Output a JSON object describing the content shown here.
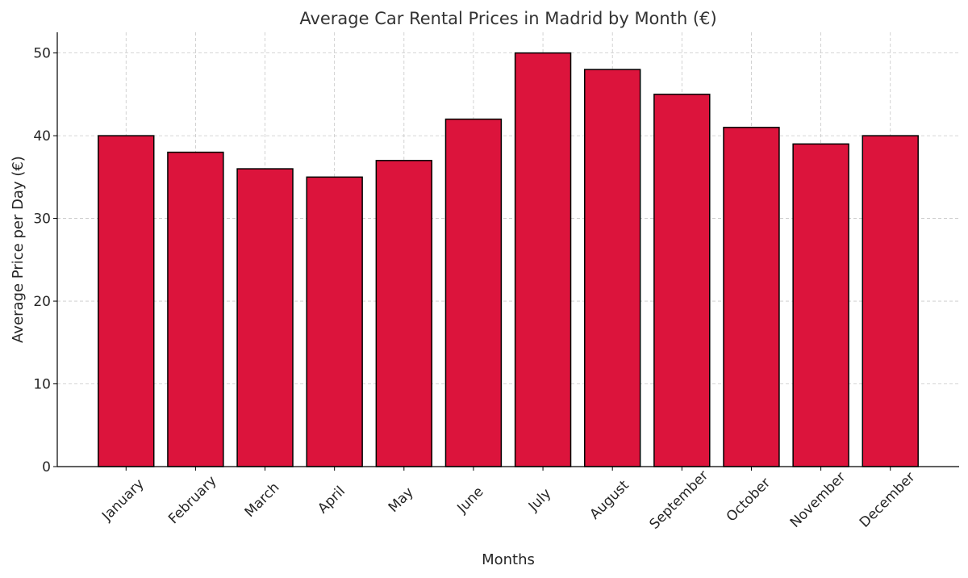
{
  "chart_data": {
    "type": "bar",
    "title": "Average Car Rental Prices in Madrid by Month (€)",
    "xlabel": "Months",
    "ylabel": "Average Price per Day (€)",
    "categories": [
      "January",
      "February",
      "March",
      "April",
      "May",
      "June",
      "July",
      "August",
      "September",
      "October",
      "November",
      "December"
    ],
    "values": [
      40,
      38,
      36,
      35,
      37,
      42,
      50,
      48,
      45,
      41,
      39,
      40
    ],
    "ylim": [
      0,
      52.5
    ],
    "yticks": [
      0,
      10,
      20,
      30,
      40,
      50
    ],
    "grid": true,
    "bar_color": "#DC143C",
    "edge_color": "#000000",
    "xtick_rotation_deg": 45
  }
}
